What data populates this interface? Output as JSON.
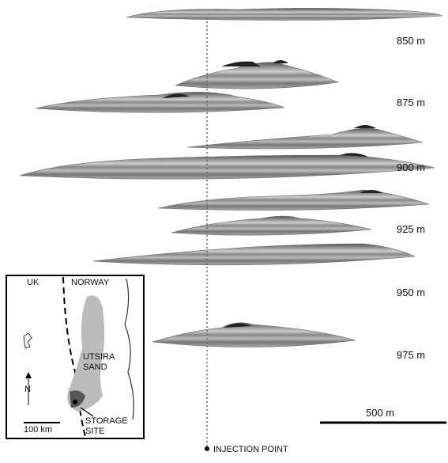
{
  "figure": {
    "depth_labels": [
      "850 m",
      "875 m",
      "900 m",
      "925 m",
      "950 m",
      "975 m"
    ],
    "scale_bar": "500 m",
    "injection_point": "INJECTION POINT",
    "inset": {
      "uk": "UK",
      "norway": "NORWAY",
      "utsira": [
        "UTSIRA",
        "SAND"
      ],
      "storage": [
        "STORAGE",
        "SITE"
      ],
      "scale": "100 km",
      "north": "N"
    }
  }
}
